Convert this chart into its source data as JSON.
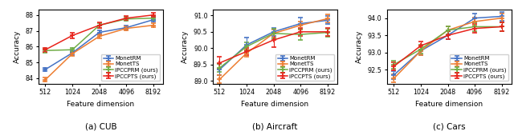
{
  "x": [
    512,
    1024,
    2048,
    4096,
    8192
  ],
  "subplot_titles": [
    "(a) CUB",
    "(b) Aircraft",
    "(c) Cars"
  ],
  "xlabel": "Feature dimension",
  "ylabel": "Accuracy",
  "legend_labels": [
    "MonetRM",
    "MonetTS",
    "iPCCPRM (ours)",
    "iPCCPTS (ours)"
  ],
  "colors": [
    "#4472c4",
    "#ed7d31",
    "#70ad47",
    "#e8221a"
  ],
  "plots": [
    {
      "ylim": [
        83.65,
        88.35
      ],
      "yticks": [
        84,
        85,
        86,
        87,
        88
      ],
      "data": [
        [
          84.55,
          85.6,
          86.9,
          87.2,
          87.7
        ],
        [
          83.9,
          85.55,
          86.65,
          87.15,
          87.35
        ],
        [
          85.75,
          85.8,
          87.35,
          87.75,
          87.8
        ],
        [
          85.8,
          86.7,
          87.35,
          87.8,
          88.0
        ]
      ],
      "errors": [
        [
          0.12,
          0.12,
          0.15,
          0.12,
          0.12
        ],
        [
          0.12,
          0.12,
          0.12,
          0.12,
          0.12
        ],
        [
          0.12,
          0.12,
          0.15,
          0.12,
          0.12
        ],
        [
          0.12,
          0.18,
          0.18,
          0.12,
          0.12
        ]
      ],
      "legend_loc": "lower right"
    },
    {
      "ylim": [
        88.92,
        91.18
      ],
      "yticks": [
        89.0,
        89.5,
        90.0,
        90.5,
        91.0
      ],
      "data": [
        [
          89.35,
          90.1,
          90.5,
          90.75,
          90.85
        ],
        [
          89.05,
          89.85,
          90.45,
          90.7,
          90.9
        ],
        [
          89.4,
          90.05,
          90.45,
          90.42,
          90.48
        ],
        [
          89.55,
          89.9,
          90.25,
          90.5,
          90.5
        ]
      ],
      "errors": [
        [
          0.18,
          0.22,
          0.12,
          0.18,
          0.12
        ],
        [
          0.12,
          0.12,
          0.12,
          0.12,
          0.12
        ],
        [
          0.12,
          0.12,
          0.15,
          0.18,
          0.12
        ],
        [
          0.18,
          0.12,
          0.22,
          0.12,
          0.12
        ]
      ],
      "legend_loc": "lower right"
    },
    {
      "ylim": [
        92.1,
        94.25
      ],
      "yticks": [
        92.5,
        93.0,
        93.5,
        94.0
      ],
      "data": [
        [
          92.35,
          93.05,
          93.5,
          94.0,
          94.05
        ],
        [
          92.25,
          93.05,
          93.65,
          93.9,
          94.0
        ],
        [
          92.65,
          93.1,
          93.65,
          93.75,
          93.75
        ],
        [
          92.6,
          93.2,
          93.5,
          93.7,
          93.75
        ]
      ],
      "errors": [
        [
          0.12,
          0.12,
          0.12,
          0.12,
          0.12
        ],
        [
          0.12,
          0.12,
          0.12,
          0.12,
          0.12
        ],
        [
          0.12,
          0.12,
          0.12,
          0.12,
          0.12
        ],
        [
          0.12,
          0.12,
          0.12,
          0.12,
          0.12
        ]
      ],
      "legend_loc": "lower right"
    }
  ]
}
